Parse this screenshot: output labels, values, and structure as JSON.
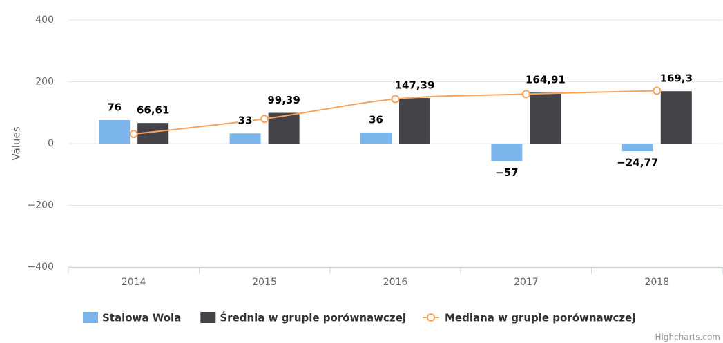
{
  "chart_data": {
    "type": "bar",
    "y_axis_label": "Values",
    "categories": [
      "2014",
      "2015",
      "2016",
      "2017",
      "2018"
    ],
    "series": [
      {
        "name": "Stalowa Wola",
        "type": "bar",
        "color": "#7cb5ec",
        "values": [
          76,
          33,
          36,
          -57,
          -24.77
        ],
        "value_labels": [
          "76",
          "33",
          "36",
          "−57",
          "−24,77"
        ]
      },
      {
        "name": "Średnia w grupie porównawczej",
        "type": "bar",
        "color": "#434348",
        "values": [
          66.61,
          99.39,
          147.39,
          164.91,
          169.3
        ],
        "value_labels": [
          "66,61",
          "99,39",
          "147,39",
          "164,91",
          "169,3"
        ]
      },
      {
        "name": "Mediana w grupie porównawczej",
        "type": "line",
        "color": "#f7a35c",
        "values": [
          31,
          80,
          144,
          160,
          171
        ]
      }
    ],
    "ylim": [
      -400,
      400
    ],
    "yticks": [
      {
        "value": -400,
        "label": "−400"
      },
      {
        "value": -200,
        "label": "−200"
      },
      0,
      200,
      400
    ],
    "grid": true,
    "legend": "bottom",
    "credits": "Highcharts.com"
  }
}
